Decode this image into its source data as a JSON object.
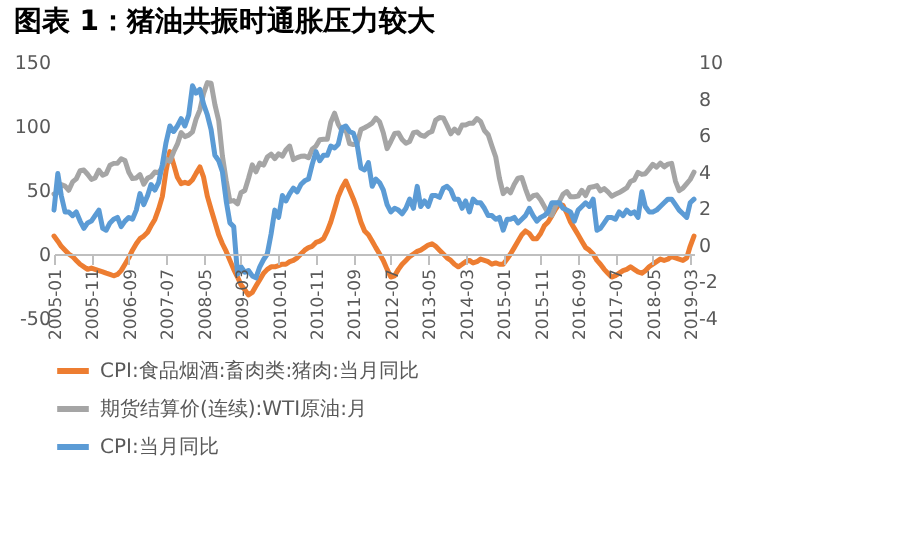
{
  "chart_data": {
    "type": "line",
    "title": "图表 1：猪油共振时通胀压力较大",
    "x": [
      "2005-01",
      "2005-02",
      "2005-03",
      "2005-04",
      "2005-05",
      "2005-06",
      "2005-07",
      "2005-08",
      "2005-09",
      "2005-10",
      "2005-11",
      "2005-12",
      "2006-01",
      "2006-02",
      "2006-03",
      "2006-04",
      "2006-05",
      "2006-06",
      "2006-07",
      "2006-08",
      "2006-09",
      "2006-10",
      "2006-11",
      "2006-12",
      "2007-01",
      "2007-02",
      "2007-03",
      "2007-04",
      "2007-05",
      "2007-06",
      "2007-07",
      "2007-08",
      "2007-09",
      "2007-10",
      "2007-11",
      "2007-12",
      "2008-01",
      "2008-02",
      "2008-03",
      "2008-04",
      "2008-05",
      "2008-06",
      "2008-07",
      "2008-08",
      "2008-09",
      "2008-10",
      "2008-11",
      "2008-12",
      "2009-01",
      "2009-02",
      "2009-03",
      "2009-04",
      "2009-05",
      "2009-06",
      "2009-07",
      "2009-08",
      "2009-09",
      "2009-10",
      "2009-11",
      "2009-12",
      "2010-01",
      "2010-02",
      "2010-03",
      "2010-04",
      "2010-05",
      "2010-06",
      "2010-07",
      "2010-08",
      "2010-09",
      "2010-10",
      "2010-11",
      "2010-12",
      "2011-01",
      "2011-02",
      "2011-03",
      "2011-04",
      "2011-05",
      "2011-06",
      "2011-07",
      "2011-08",
      "2011-09",
      "2011-10",
      "2011-11",
      "2011-12",
      "2012-01",
      "2012-02",
      "2012-03",
      "2012-04",
      "2012-05",
      "2012-06",
      "2012-07",
      "2012-08",
      "2012-09",
      "2012-10",
      "2012-11",
      "2012-12",
      "2013-01",
      "2013-02",
      "2013-03",
      "2013-04",
      "2013-05",
      "2013-06",
      "2013-07",
      "2013-08",
      "2013-09",
      "2013-10",
      "2013-11",
      "2013-12",
      "2014-01",
      "2014-02",
      "2014-03",
      "2014-04",
      "2014-05",
      "2014-06",
      "2014-07",
      "2014-08",
      "2014-09",
      "2014-10",
      "2014-11",
      "2014-12",
      "2015-01",
      "2015-02",
      "2015-03",
      "2015-04",
      "2015-05",
      "2015-06",
      "2015-07",
      "2015-08",
      "2015-09",
      "2015-10",
      "2015-11",
      "2015-12",
      "2016-01",
      "2016-02",
      "2016-03",
      "2016-04",
      "2016-05",
      "2016-06",
      "2016-07",
      "2016-08",
      "2016-09",
      "2016-10",
      "2016-11",
      "2016-12",
      "2017-01",
      "2017-02",
      "2017-03",
      "2017-04",
      "2017-05",
      "2017-06",
      "2017-07",
      "2017-08",
      "2017-09",
      "2017-10",
      "2017-11",
      "2017-12",
      "2018-01",
      "2018-02",
      "2018-03",
      "2018-04",
      "2018-05",
      "2018-06",
      "2018-07",
      "2018-08",
      "2018-09",
      "2018-10",
      "2018-11",
      "2018-12",
      "2019-01",
      "2019-02",
      "2019-03",
      "2019-04"
    ],
    "xlim": [
      "2005-01",
      "2019-04"
    ],
    "xticks": [
      "2005-01",
      "2005-11",
      "2006-09",
      "2007-07",
      "2008-05",
      "2009-03",
      "2010-01",
      "2010-11",
      "2011-09",
      "2012-07",
      "2013-05",
      "2014-03",
      "2015-01",
      "2015-11",
      "2016-09",
      "2017-07",
      "2018-05",
      "2019-03"
    ],
    "ylim": [
      -50,
      150
    ],
    "yticks": [
      -50,
      0,
      50,
      100,
      150
    ],
    "y2lim": [
      -4,
      10
    ],
    "y2ticks": [
      -4,
      -2,
      0,
      2,
      4,
      6,
      8,
      10
    ],
    "grid": false,
    "legend": "bottom",
    "series": [
      {
        "name": "CPI:食品烟酒:畜肉类:猪肉:当月同比",
        "color": "#ed7d31",
        "values": [
          14,
          10,
          6,
          3,
          0,
          -2,
          -5,
          -8,
          -10,
          -12,
          -11,
          -12,
          -13,
          -14,
          -15,
          -16,
          -17,
          -16,
          -13,
          -8,
          -3,
          3,
          8,
          12,
          14,
          17,
          22,
          27,
          35,
          45,
          65,
          80,
          70,
          60,
          55,
          56,
          55,
          58,
          63,
          68,
          60,
          45,
          35,
          25,
          15,
          8,
          2,
          -5,
          -12,
          -18,
          -24,
          -28,
          -32,
          -30,
          -25,
          -20,
          -15,
          -12,
          -10,
          -10,
          -9,
          -8,
          -8,
          -6,
          -5,
          -3,
          0,
          3,
          5,
          6,
          9,
          10,
          12,
          18,
          25,
          35,
          45,
          52,
          57,
          50,
          43,
          35,
          25,
          18,
          15,
          10,
          5,
          0,
          -5,
          -12,
          -18,
          -17,
          -12,
          -8,
          -5,
          -2,
          0,
          2,
          3,
          5,
          7,
          8,
          6,
          3,
          0,
          -3,
          -5,
          -8,
          -10,
          -8,
          -6,
          -5,
          -7,
          -6,
          -4,
          -5,
          -6,
          -8,
          -7,
          -8,
          -8,
          -4,
          0,
          5,
          10,
          15,
          18,
          16,
          12,
          12,
          16,
          22,
          25,
          30,
          35,
          39,
          38,
          32,
          25,
          20,
          15,
          10,
          5,
          3,
          0,
          -5,
          -8,
          -12,
          -15,
          -18,
          -17,
          -15,
          -13,
          -12,
          -10,
          -12,
          -14,
          -15,
          -13,
          -10,
          -8,
          -6,
          -4,
          -5,
          -4,
          -2,
          -3,
          -4,
          -5,
          -3,
          6,
          14
        ]
      },
      {
        "name": "期货结算价(连续):WTI原油:月",
        "color": "#a5a5a5",
        "values": [
          46.8,
          48.1,
          54.2,
          53.0,
          49.8,
          56.3,
          58.7,
          65.0,
          65.6,
          62.3,
          58.3,
          59.4,
          65.5,
          61.6,
          62.7,
          69.4,
          70.8,
          70.9,
          74.4,
          73.0,
          63.8,
          58.9,
          59.4,
          62.0,
          54.5,
          59.3,
          60.4,
          64.0,
          63.5,
          67.5,
          74.1,
          72.4,
          79.9,
          85.8,
          94.8,
          91.7,
          92.9,
          95.4,
          105.4,
          112.6,
          125.4,
          133.9,
          133.4,
          116.7,
          104.1,
          76.6,
          57.3,
          41.1,
          41.7,
          39.1,
          47.9,
          49.6,
          59.0,
          69.6,
          64.2,
          71.0,
          69.4,
          75.7,
          78.0,
          74.5,
          78.3,
          76.4,
          81.2,
          84.3,
          73.7,
          75.3,
          76.3,
          76.6,
          75.2,
          81.9,
          84.3,
          89.2,
          89.6,
          89.7,
          102.9,
          110.0,
          101.3,
          96.3,
          97.3,
          86.3,
          85.5,
          86.3,
          97.2,
          98.6,
          100.3,
          102.2,
          106.2,
          103.3,
          94.7,
          82.3,
          87.9,
          94.1,
          94.5,
          89.5,
          86.5,
          87.9,
          94.8,
          95.3,
          92.9,
          92.0,
          94.5,
          95.8,
          104.6,
          106.6,
          106.3,
          100.5,
          93.9,
          97.6,
          94.6,
          100.8,
          100.8,
          102.1,
          102.2,
          105.8,
          103.6,
          96.5,
          93.2,
          84.4,
          75.8,
          59.3,
          47.2,
          50.6,
          47.8,
          54.5,
          59.3,
          59.8,
          50.9,
          42.9,
          45.5,
          46.2,
          42.4,
          37.2,
          31.7,
          30.3,
          37.5,
          40.8,
          46.7,
          48.8,
          44.7,
          44.7,
          45.2,
          49.8,
          45.7,
          52.0,
          52.5,
          53.5,
          49.3,
          51.1,
          48.5,
          45.2,
          46.6,
          48.0,
          49.8,
          51.6,
          56.6,
          57.9,
          63.7,
          62.2,
          62.7,
          66.3,
          70.0,
          67.9,
          71.0,
          68.1,
          70.2,
          70.8,
          57.0,
          49.5,
          51.4,
          55.0,
          58.2,
          63.9
        ]
      },
      {
        "name": "CPI:当月同比",
        "color": "#5b9bd5",
        "axis": "y2",
        "values": [
          1.9,
          3.9,
          2.7,
          1.8,
          1.8,
          1.6,
          1.8,
          1.3,
          0.9,
          1.2,
          1.3,
          1.6,
          1.9,
          0.9,
          0.8,
          1.2,
          1.4,
          1.5,
          1.0,
          1.3,
          1.5,
          1.4,
          1.9,
          2.8,
          2.2,
          2.7,
          3.3,
          3.0,
          3.4,
          4.4,
          5.6,
          6.5,
          6.2,
          6.5,
          6.9,
          6.5,
          7.1,
          8.7,
          8.3,
          8.5,
          7.7,
          7.1,
          6.3,
          4.9,
          4.6,
          4.0,
          2.4,
          1.2,
          1.0,
          -1.6,
          -1.2,
          -1.5,
          -1.4,
          -1.7,
          -1.8,
          -1.2,
          -0.8,
          -0.5,
          0.6,
          1.9,
          1.5,
          2.7,
          2.4,
          2.8,
          3.1,
          2.9,
          3.3,
          3.5,
          3.6,
          4.4,
          5.1,
          4.6,
          4.9,
          4.9,
          5.4,
          5.3,
          5.5,
          6.4,
          6.5,
          6.2,
          6.1,
          5.5,
          4.2,
          4.1,
          4.5,
          3.2,
          3.6,
          3.4,
          3.0,
          2.2,
          1.8,
          2.0,
          1.9,
          1.7,
          2.0,
          2.5,
          2.0,
          3.2,
          2.1,
          2.4,
          2.1,
          2.7,
          2.7,
          2.6,
          3.1,
          3.2,
          3.0,
          2.5,
          2.5,
          2.0,
          2.4,
          1.8,
          2.5,
          2.3,
          2.3,
          2.0,
          1.6,
          1.6,
          1.4,
          1.5,
          0.8,
          1.4,
          1.4,
          1.5,
          1.2,
          1.4,
          1.6,
          2.0,
          1.6,
          1.3,
          1.5,
          1.6,
          1.8,
          2.3,
          2.3,
          2.3,
          2.0,
          1.9,
          1.8,
          1.3,
          1.9,
          2.1,
          2.3,
          2.1,
          2.5,
          0.8,
          0.9,
          1.2,
          1.5,
          1.5,
          1.4,
          1.8,
          1.6,
          1.9,
          1.7,
          1.8,
          1.5,
          2.9,
          2.1,
          1.8,
          1.8,
          1.9,
          2.1,
          2.3,
          2.5,
          2.5,
          2.2,
          1.9,
          1.7,
          1.5,
          2.3,
          2.5
        ]
      }
    ]
  }
}
